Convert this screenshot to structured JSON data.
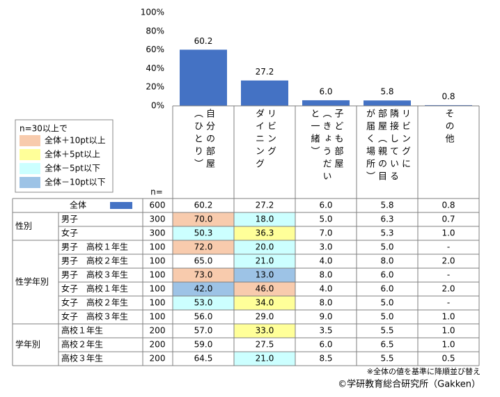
{
  "chart_data": {
    "type": "bar",
    "categories": [
      "自分の部屋\n（ひとり）",
      "リビング\nダイニング",
      "子ども部屋\n（きょうだい\nと一緒）",
      "リビングに\n隣接している\n部屋（親の目\nが届く場所）",
      "その他"
    ],
    "values": [
      60.2,
      27.2,
      6.0,
      5.8,
      0.8
    ],
    "value_labels": [
      "60.2",
      "27.2",
      "6.0",
      "5.8",
      "0.8"
    ],
    "color": "#4472c4",
    "ylim": [
      0,
      100
    ],
    "yticks": [
      {
        "value": 0,
        "label": "0%"
      },
      {
        "value": 20,
        "label": "20%"
      },
      {
        "value": 40,
        "label": "40%"
      },
      {
        "value": 60,
        "label": "60%"
      },
      {
        "value": 80,
        "label": "80%"
      },
      {
        "value": 100,
        "label": "100%"
      }
    ]
  },
  "legend": {
    "title": "n=30以上で",
    "items": [
      {
        "label": "全体＋10pt以上",
        "color": "#f8cbad"
      },
      {
        "label": "全体＋5pt以上",
        "color": "#ffff99"
      },
      {
        "label": "全体－5pt以下",
        "color": "#ccffff"
      },
      {
        "label": "全体－10pt以下",
        "color": "#9dc3e6"
      }
    ]
  },
  "table": {
    "n_header": "n=",
    "total": {
      "label": "全体",
      "n": "600"
    },
    "groups": [
      {
        "label": "性別",
        "rows": [
          {
            "label": "男子",
            "n": "300",
            "cells": [
              "70.0",
              "18.0",
              "5.0",
              "6.3",
              "0.7"
            ],
            "levels": [
              0,
              2,
              null,
              null,
              null
            ]
          },
          {
            "label": "女子",
            "n": "300",
            "cells": [
              "50.3",
              "36.3",
              "7.0",
              "5.3",
              "1.0"
            ],
            "levels": [
              2,
              1,
              null,
              null,
              null
            ]
          }
        ]
      },
      {
        "label": "性学年別",
        "rows": [
          {
            "label": "男子　高校１年生",
            "n": "100",
            "cells": [
              "72.0",
              "20.0",
              "3.0",
              "5.0",
              "-"
            ],
            "levels": [
              0,
              2,
              null,
              null,
              null
            ]
          },
          {
            "label": "男子　高校２年生",
            "n": "100",
            "cells": [
              "65.0",
              "21.0",
              "4.0",
              "8.0",
              "2.0"
            ],
            "levels": [
              null,
              2,
              null,
              null,
              null
            ]
          },
          {
            "label": "男子　高校３年生",
            "n": "100",
            "cells": [
              "73.0",
              "13.0",
              "8.0",
              "6.0",
              "-"
            ],
            "levels": [
              0,
              3,
              null,
              null,
              null
            ]
          },
          {
            "label": "女子　高校１年生",
            "n": "100",
            "cells": [
              "42.0",
              "46.0",
              "4.0",
              "6.0",
              "2.0"
            ],
            "levels": [
              3,
              0,
              null,
              null,
              null
            ]
          },
          {
            "label": "女子　高校２年生",
            "n": "100",
            "cells": [
              "53.0",
              "34.0",
              "8.0",
              "5.0",
              "-"
            ],
            "levels": [
              2,
              1,
              null,
              null,
              null
            ]
          },
          {
            "label": "女子　高校３年生",
            "n": "100",
            "cells": [
              "56.0",
              "29.0",
              "9.0",
              "5.0",
              "1.0"
            ],
            "levels": [
              null,
              null,
              null,
              null,
              null
            ]
          }
        ]
      },
      {
        "label": "学年別",
        "rows": [
          {
            "label": "高校１年生",
            "n": "200",
            "cells": [
              "57.0",
              "33.0",
              "3.5",
              "5.5",
              "1.0"
            ],
            "levels": [
              null,
              1,
              null,
              null,
              null
            ]
          },
          {
            "label": "高校２年生",
            "n": "200",
            "cells": [
              "59.0",
              "27.5",
              "6.0",
              "6.5",
              "1.0"
            ],
            "levels": [
              null,
              null,
              null,
              null,
              null
            ]
          },
          {
            "label": "高校３年生",
            "n": "200",
            "cells": [
              "64.5",
              "21.0",
              "8.5",
              "5.5",
              "0.5"
            ],
            "levels": [
              null,
              2,
              null,
              null,
              null
            ]
          }
        ]
      }
    ]
  },
  "notes": [
    "※全体の値を基準に降順並び替え",
    "©学研教育総合研究所（Gakken）"
  ]
}
